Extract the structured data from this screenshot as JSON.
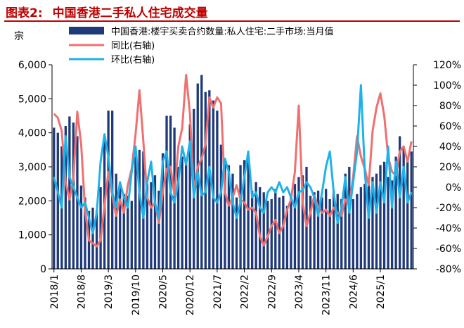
{
  "title": {
    "label": "图表2:",
    "text": "中国香港二手私人住宅成交量"
  },
  "chart_data": {
    "type": "bar+line",
    "y_left": {
      "unit": "宗",
      "min": 0,
      "max": 6000,
      "ticks": [
        "0",
        "1,000",
        "2,000",
        "3,000",
        "4,000",
        "5,000",
        "6,000"
      ]
    },
    "y_right": {
      "min": -80,
      "max": 120,
      "ticks": [
        "-80%",
        "-60%",
        "-40%",
        "-20%",
        "0%",
        "20%",
        "40%",
        "60%",
        "80%",
        "100%",
        "120%"
      ]
    },
    "x_ticks": [
      "2018/1",
      "2018/8",
      "2019/3",
      "2019/10",
      "2020/5",
      "2020/12",
      "2021/7",
      "2022/2",
      "2022/9",
      "2023/4",
      "2023/11",
      "2024/6",
      "2025/1"
    ],
    "x_tick_index": [
      0,
      7,
      14,
      21,
      28,
      35,
      42,
      49,
      56,
      63,
      70,
      77,
      84
    ],
    "grid": false,
    "legend_position": "top",
    "series": [
      {
        "name": "中国香港:楼宇买卖合约数量:私人住宅:二手市场:当月值",
        "type": "bar",
        "axis": "left",
        "color": "#1f3a7a",
        "values": [
          4150,
          4000,
          3600,
          4200,
          4480,
          4300,
          3900,
          2450,
          2100,
          1700,
          1800,
          1700,
          2400,
          3900,
          4650,
          4650,
          2800,
          2500,
          2200,
          2150,
          2000,
          3300,
          3500,
          3450,
          2500,
          2550,
          2750,
          2300,
          3400,
          4500,
          4500,
          4150,
          3000,
          3300,
          3250,
          4250,
          4700,
          5450,
          5700,
          5200,
          5250,
          4950,
          4650,
          3650,
          3200,
          3050,
          2800,
          2100,
          3050,
          3200,
          3300,
          2300,
          2550,
          2400,
          2250,
          2000,
          2050,
          2350,
          2100,
          2150,
          1850,
          2200,
          2500,
          2700,
          2750,
          3000,
          2150,
          2250,
          2300,
          2100,
          2350,
          2050,
          2300,
          2200,
          2050,
          2800,
          3000,
          2050,
          2200,
          2400,
          2500,
          2550,
          2700,
          2800,
          3050,
          3150,
          2700,
          2600,
          3300,
          3900,
          3600,
          3200,
          3450
        ]
      },
      {
        "name": "同比(右轴)",
        "type": "line",
        "axis": "right",
        "color": "#f07070",
        "values": [
          72,
          68,
          55,
          5,
          -12,
          8,
          74,
          42,
          -22,
          -52,
          -55,
          -58,
          -52,
          -18,
          15,
          -8,
          -28,
          -12,
          -25,
          2,
          18,
          52,
          95,
          45,
          -10,
          -20,
          -15,
          -35,
          -5,
          18,
          20,
          -8,
          40,
          58,
          110,
          72,
          -5,
          20,
          28,
          42,
          88,
          78,
          88,
          82,
          -5,
          -18,
          -10,
          2,
          -12,
          -15,
          -22,
          -20,
          -25,
          -48,
          -57,
          -48,
          -38,
          -32,
          -45,
          -38,
          -22,
          -12,
          15,
          80,
          -15,
          -38,
          -25,
          -8,
          -20,
          -25,
          -22,
          -28,
          -20,
          -25,
          -28,
          -12,
          -18,
          10,
          50,
          30,
          18,
          2,
          55,
          78,
          92,
          70,
          30,
          15,
          12,
          35,
          40,
          25,
          45
        ]
      },
      {
        "name": "环比(右轴)",
        "type": "line",
        "axis": "right",
        "color": "#1fb2e8",
        "values": [
          10,
          -5,
          -20,
          50,
          10,
          0,
          -10,
          -20,
          -15,
          -30,
          -45,
          -25,
          25,
          52,
          30,
          -5,
          -20,
          5,
          -10,
          -20,
          15,
          40,
          -5,
          -30,
          5,
          25,
          -15,
          -30,
          25,
          35,
          -5,
          -15,
          5,
          40,
          22,
          45,
          -10,
          15,
          -8,
          -5,
          20,
          -10,
          -15,
          -5,
          28,
          15,
          -15,
          -30,
          -15,
          10,
          35,
          -10,
          -5,
          -20,
          -25,
          -5,
          0,
          -5,
          5,
          -5,
          0,
          -10,
          -20,
          -5,
          -3,
          5,
          0,
          -10,
          -28,
          -5,
          20,
          35,
          -5,
          -35,
          -20,
          10,
          -25,
          5,
          35,
          100,
          15,
          -30,
          5,
          -25,
          5,
          -15,
          40,
          -20,
          25,
          -10,
          20,
          -15,
          -5
        ]
      }
    ]
  }
}
